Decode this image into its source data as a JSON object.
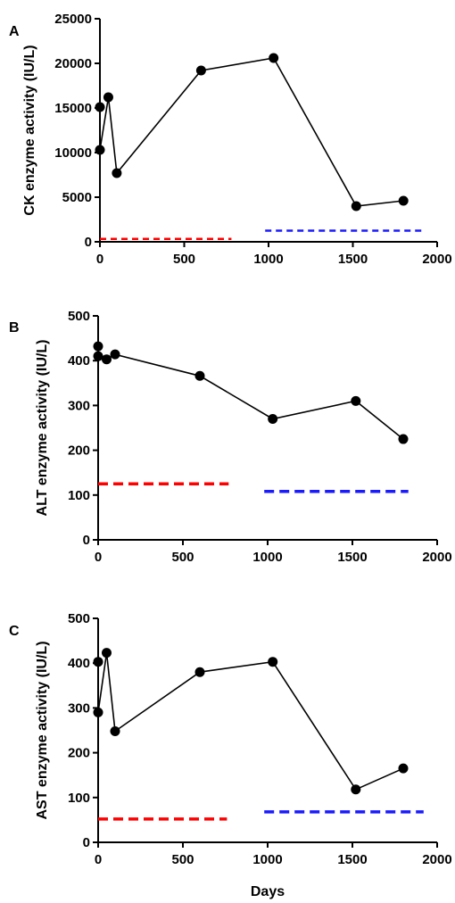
{
  "chart_data": [
    {
      "type": "line",
      "panel_label": "A",
      "ylabel": "CK enzyme activity (IU/L)",
      "xlabel": "",
      "xlim": [
        0,
        2000
      ],
      "ylim": [
        0,
        25000
      ],
      "x_ticks": [
        "0",
        "500",
        "1000",
        "1500",
        "2000"
      ],
      "y_ticks": [
        "0",
        "5000",
        "10000",
        "15000",
        "20000",
        "25000"
      ],
      "series": [
        {
          "x": [
            0,
            0,
            50,
            100,
            600,
            1030,
            1520,
            1800
          ],
          "y": [
            15100,
            10300,
            16200,
            7700,
            19200,
            20600,
            4000,
            4600
          ],
          "color": "#000000"
        }
      ],
      "reference_lines": [
        {
          "x0": 0,
          "x1": 780,
          "y": 320,
          "color": "#ff0000"
        },
        {
          "x0": 980,
          "x1": 1920,
          "y": 1250,
          "color": "#1a1aff"
        }
      ]
    },
    {
      "type": "line",
      "panel_label": "B",
      "ylabel": "ALT enzyme activity (IU/L)",
      "xlabel": "",
      "xlim": [
        0,
        2000
      ],
      "ylim": [
        0,
        500
      ],
      "x_ticks": [
        "0",
        "500",
        "1000",
        "1500",
        "2000"
      ],
      "y_ticks": [
        "0",
        "100",
        "200",
        "300",
        "400",
        "500"
      ],
      "series": [
        {
          "x": [
            0,
            0,
            50,
            100,
            600,
            1030,
            1520,
            1800
          ],
          "y": [
            432,
            410,
            403,
            414,
            366,
            270,
            310,
            225
          ],
          "color": "#000000"
        }
      ],
      "reference_lines": [
        {
          "x0": 0,
          "x1": 770,
          "y": 125,
          "color": "#ff0000"
        },
        {
          "x0": 980,
          "x1": 1830,
          "y": 108,
          "color": "#1a1aff"
        }
      ]
    },
    {
      "type": "line",
      "panel_label": "C",
      "ylabel": "AST enzyme activity (IU/L)",
      "xlabel": "Days",
      "xlim": [
        0,
        2000
      ],
      "ylim": [
        0,
        500
      ],
      "x_ticks": [
        "0",
        "500",
        "1000",
        "1500",
        "2000"
      ],
      "y_ticks": [
        "0",
        "100",
        "200",
        "300",
        "400",
        "500"
      ],
      "series": [
        {
          "x": [
            0,
            0,
            50,
            100,
            600,
            1030,
            1520,
            1800
          ],
          "y": [
            403,
            290,
            423,
            248,
            380,
            403,
            118,
            165
          ],
          "color": "#000000"
        }
      ],
      "reference_lines": [
        {
          "x0": 0,
          "x1": 760,
          "y": 52,
          "color": "#ff0000"
        },
        {
          "x0": 980,
          "x1": 1920,
          "y": 68,
          "color": "#1a1aff"
        }
      ]
    }
  ]
}
